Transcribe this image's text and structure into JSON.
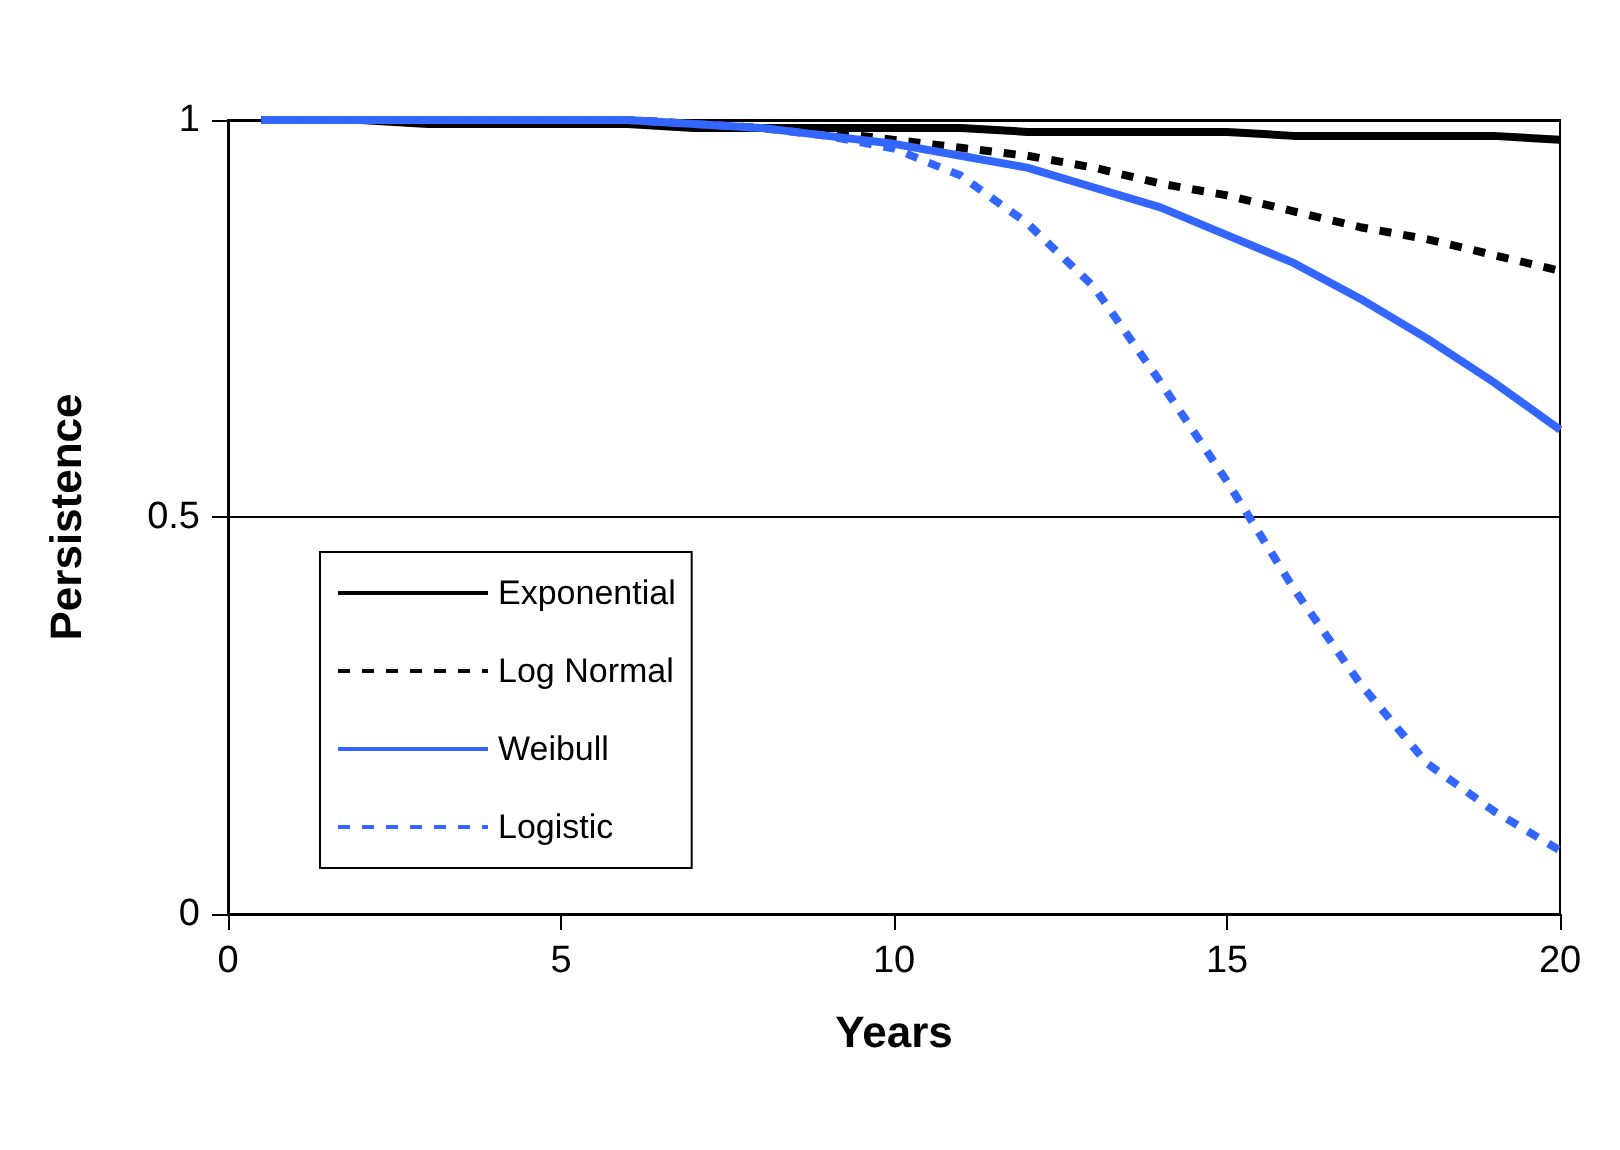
{
  "chart_data": {
    "type": "line",
    "xlabel": "Years",
    "ylabel": "Persistence",
    "xlim": [
      0,
      20
    ],
    "xticks": [
      0,
      5,
      10,
      15,
      20
    ],
    "ylim": [
      0,
      1
    ],
    "yticks": [
      0,
      0.5,
      1
    ],
    "grid": "y",
    "legend": "left",
    "marker": "none",
    "x": [
      0.5,
      1,
      2,
      3,
      4,
      5,
      6,
      7,
      8,
      9,
      10,
      11,
      12,
      13,
      14,
      15,
      16,
      17,
      18,
      19,
      20
    ],
    "series": [
      {
        "name": "Exponential",
        "color": "#000000",
        "line_style": "solid",
        "values": [
          1,
          1,
          1,
          0.995,
          0.995,
          0.995,
          0.995,
          0.99,
          0.99,
          0.99,
          0.99,
          0.99,
          0.985,
          0.985,
          0.985,
          0.985,
          0.98,
          0.98,
          0.98,
          0.98,
          0.975
        ]
      },
      {
        "name": "Log Normal",
        "color": "#000000",
        "line_style": "dashed",
        "values": [
          1,
          1,
          1,
          1,
          1,
          1,
          1,
          0.995,
          0.99,
          0.985,
          0.975,
          0.965,
          0.955,
          0.94,
          0.92,
          0.905,
          0.885,
          0.865,
          0.85,
          0.83,
          0.81
        ]
      },
      {
        "name": "Weibull",
        "color": "#3366ff",
        "line_style": "solid",
        "values": [
          1,
          1,
          1,
          1,
          1,
          1,
          1,
          0.995,
          0.99,
          0.98,
          0.97,
          0.955,
          0.94,
          0.915,
          0.89,
          0.855,
          0.82,
          0.775,
          0.725,
          0.67,
          0.61
        ]
      },
      {
        "name": "Logistic",
        "color": "#3366ff",
        "line_style": "dashed",
        "values": [
          1,
          1,
          1,
          1,
          1,
          1,
          1,
          0.995,
          0.99,
          0.98,
          0.964,
          0.93,
          0.87,
          0.79,
          0.67,
          0.545,
          0.41,
          0.29,
          0.19,
          0.13,
          0.08
        ]
      }
    ]
  }
}
